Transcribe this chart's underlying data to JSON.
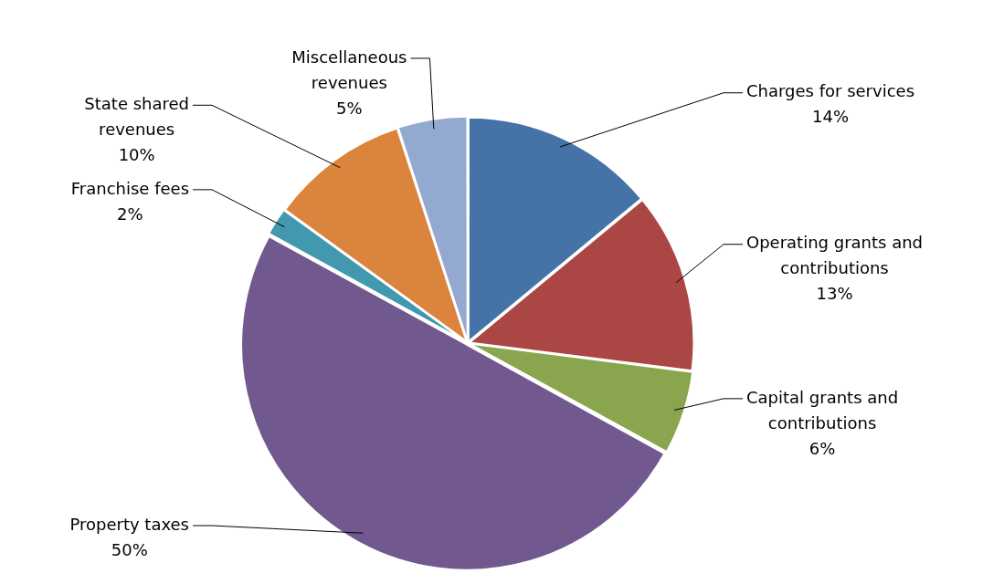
{
  "chart_data": {
    "type": "pie",
    "categories": [
      "Charges for services",
      "Operating grants and contributions",
      "Capital grants and contributions",
      "Property taxes",
      "Franchise fees",
      "State shared revenues",
      "Miscellaneous revenues"
    ],
    "values": [
      14,
      13,
      6,
      50,
      2,
      10,
      5
    ],
    "colors": [
      "#4572a7",
      "#aa4643",
      "#89a54e",
      "#71588f",
      "#4198af",
      "#db843d",
      "#93a9cf"
    ],
    "value_labels": [
      "14%",
      "13%",
      "6%",
      "50%",
      "2%",
      "10%",
      "5%"
    ],
    "legend": false
  }
}
